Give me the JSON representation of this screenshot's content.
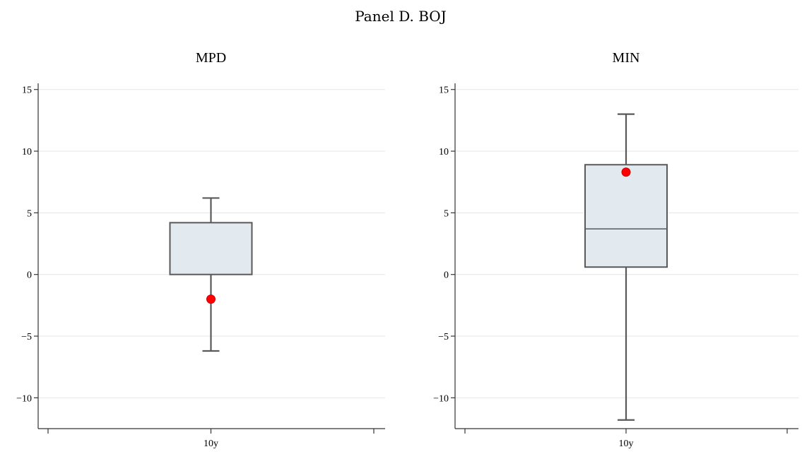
{
  "figure": {
    "title": "Panel D. BOJ"
  },
  "chart_data": [
    {
      "type": "box",
      "title": "MPD",
      "categories": [
        "10y"
      ],
      "ylim": [
        -12.5,
        15.5
      ],
      "yticks": [
        -10,
        -5,
        0,
        5,
        10,
        15
      ],
      "ytick_labels": [
        "−10",
        "−5",
        "0",
        "5",
        "10",
        "15"
      ],
      "grid": true,
      "box": {
        "whisker_low": -6.2,
        "q1": 0.0,
        "median": 0.0,
        "q3": 4.2,
        "whisker_high": 6.2
      },
      "point": {
        "x": "10y",
        "y": -2.0
      },
      "colors": {
        "box_fill": "#e2e9ef",
        "box_edge": "#595959",
        "point": "#ff0000"
      }
    },
    {
      "type": "box",
      "title": "MIN",
      "categories": [
        "10y"
      ],
      "ylim": [
        -12.5,
        15.5
      ],
      "yticks": [
        -10,
        -5,
        0,
        5,
        10,
        15
      ],
      "ytick_labels": [
        "−10",
        "−5",
        "0",
        "5",
        "10",
        "15"
      ],
      "grid": true,
      "box": {
        "whisker_low": -11.8,
        "q1": 0.6,
        "median": 3.7,
        "q3": 8.9,
        "whisker_high": 13.0
      },
      "point": {
        "x": "10y",
        "y": 8.3
      },
      "colors": {
        "box_fill": "#e2e9ef",
        "box_edge": "#595959",
        "point": "#ff0000"
      }
    }
  ]
}
